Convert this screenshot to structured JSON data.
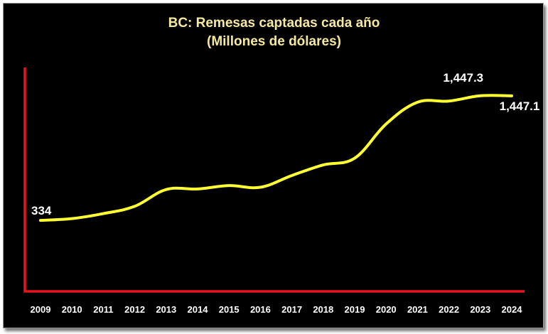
{
  "chart_data": {
    "type": "line",
    "title": "BC: Remesas captadas cada año",
    "subtitle": "(Millones de dólares)",
    "xlabel": "",
    "ylabel": "",
    "categories": [
      "2009",
      "2010",
      "2011",
      "2012",
      "2013",
      "2014",
      "2015",
      "2016",
      "2017",
      "2018",
      "2019",
      "2020",
      "2021",
      "2022",
      "2023",
      "2024"
    ],
    "series": [
      {
        "values": [
          334,
          350,
          395,
          460,
          610,
          615,
          645,
          630,
          735,
          830,
          890,
          1195,
          1390,
          1400,
          1447.3,
          1447.1
        ]
      }
    ],
    "data_labels": [
      {
        "index": 0,
        "text": "334"
      },
      {
        "index": 14,
        "text": "1,447.3"
      },
      {
        "index": 15,
        "text": "1,447.1"
      }
    ],
    "ylim": [
      -300,
      1700
    ],
    "grid": false,
    "legend": "none",
    "colors": {
      "background": "#000000",
      "line": "#ffff33",
      "axis": "#e8141b",
      "title": "#f5e8a0",
      "text": "#ffffff"
    }
  }
}
